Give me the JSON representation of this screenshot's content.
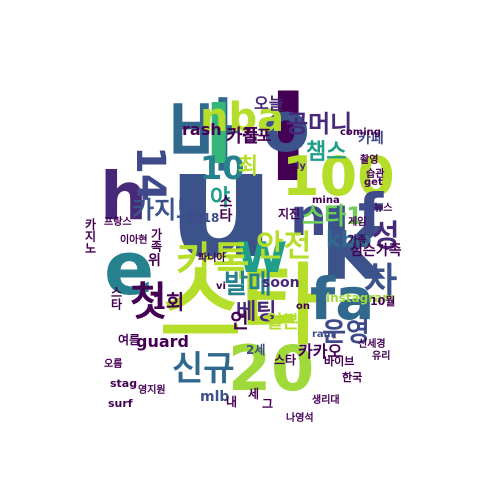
{
  "word_cloud": {
    "words": [
      {
        "text": "u",
        "color": "#3b528b"
      },
      {
        "text": "스타",
        "color": "#b5de2b"
      },
      {
        "text": "바",
        "color": "#31688e"
      },
      {
        "text": "l",
        "color": "#440154"
      },
      {
        "text": "l",
        "color": "#35b779"
      },
      {
        "text": "o",
        "color": "#3b528b"
      },
      {
        "text": "e",
        "color": "#26828e"
      },
      {
        "text": "k",
        "color": "#3b528b"
      },
      {
        "text": "h",
        "color": "#482878"
      },
      {
        "text": "w",
        "color": "#1f9e89"
      },
      {
        "text": "n",
        "color": "#3e4a89"
      },
      {
        "text": "100",
        "color": "#b5de2b"
      },
      {
        "text": "20",
        "color": "#9fda3a"
      },
      {
        "text": "fa",
        "color": "#31688e"
      },
      {
        "text": "f",
        "color": "#3e4a89"
      },
      {
        "text": "카톡",
        "color": "#b5de2b"
      },
      {
        "text": "nba",
        "color": "#b5de2b"
      },
      {
        "text": "첫",
        "color": "#440154"
      },
      {
        "text": "차",
        "color": "#3b528b"
      },
      {
        "text": "성",
        "color": "#482878"
      },
      {
        "text": "신규",
        "color": "#31688e"
      },
      {
        "text": "안전",
        "color": "#b5de2b"
      },
      {
        "text": "발매",
        "color": "#26828e"
      },
      {
        "text": "운영",
        "color": "#3e4a89"
      },
      {
        "text": "10",
        "color": "#26828e"
      },
      {
        "text": "14",
        "color": "#3e4a89"
      },
      {
        "text": "카지노",
        "color": "#3b528b"
      },
      {
        "text": "스타1",
        "color": "#6ece58"
      },
      {
        "text": "공머니",
        "color": "#482878"
      },
      {
        "text": "챔스",
        "color": "#1f9e89"
      },
      {
        "text": "kbo",
        "color": "#31688e"
      },
      {
        "text": "베팅",
        "color": "#482878"
      },
      {
        "text": "1회",
        "color": "#440154"
      },
      {
        "text": "언",
        "color": "#440154"
      },
      {
        "text": "카카오",
        "color": "#440154"
      },
      {
        "text": "카풀",
        "color": "#440154"
      },
      {
        "text": "김포",
        "color": "#440154"
      },
      {
        "text": "카페",
        "color": "#3e4a89"
      },
      {
        "text": "심슨가족",
        "color": "#440154"
      },
      {
        "text": "일본",
        "color": "#b5de2b"
      },
      {
        "text": "guard",
        "color": "#440154"
      },
      {
        "text": "soon",
        "color": "#482878"
      },
      {
        "text": "오늘",
        "color": "#482878"
      },
      {
        "text": "rash",
        "color": "#440154"
      },
      {
        "text": "mlb",
        "color": "#3b528b"
      },
      {
        "text": "stag",
        "color": "#440154"
      },
      {
        "text": "surf",
        "color": "#440154"
      },
      {
        "text": "2018",
        "color": "#3e4a89"
      },
      {
        "text": "instagram",
        "color": "#9fda3a"
      },
      {
        "text": "10월",
        "color": "#440154"
      },
      {
        "text": "get",
        "color": "#440154"
      },
      {
        "text": "ly",
        "color": "#482878"
      },
      {
        "text": "vi",
        "color": "#440154"
      },
      {
        "text": "ram",
        "color": "#3e4a89"
      },
      {
        "text": "한국",
        "color": "#440154"
      },
      {
        "text": "여름",
        "color": "#440154"
      },
      {
        "text": "오름",
        "color": "#440154"
      },
      {
        "text": "바이브",
        "color": "#440154"
      },
      {
        "text": "나영석",
        "color": "#440154"
      },
      {
        "text": "프랑스",
        "color": "#440154"
      },
      {
        "text": "영지원",
        "color": "#440154"
      },
      {
        "text": "유리",
        "color": "#440154"
      },
      {
        "text": "지진",
        "color": "#440154"
      },
      {
        "text": "신세경",
        "color": "#440154"
      },
      {
        "text": "생리대",
        "color": "#440154"
      },
      {
        "text": "가족",
        "color": "#440154"
      },
      {
        "text": "습관",
        "color": "#440154"
      },
      {
        "text": "뉴스",
        "color": "#440154"
      },
      {
        "text": "촬영",
        "color": "#440154"
      },
      {
        "text": "이아현",
        "color": "#440154"
      },
      {
        "text": "파니아",
        "color": "#440154"
      },
      {
        "text": "2세",
        "color": "#3e4a89"
      },
      {
        "text": "mina",
        "color": "#440154"
      },
      {
        "text": "coming",
        "color": "#440154"
      },
      {
        "text": "on",
        "color": "#440154"
      },
      {
        "text": "카지노",
        "color": "#440154"
      },
      {
        "text": "스타",
        "color": "#440154"
      },
      {
        "text": "가족",
        "color": "#440154"
      },
      {
        "text": "스타",
        "color": "#440154"
      },
      {
        "text": "게임",
        "color": "#440154"
      },
      {
        "text": "야",
        "color": "#1f9e89"
      },
      {
        "text": "최",
        "color": "#b5de2b"
      },
      {
        "text": "스타",
        "color": "#440154"
      },
      {
        "text": "위",
        "color": "#440154"
      },
      {
        "text": "내",
        "color": "#440154"
      },
      {
        "text": "세",
        "color": "#440154"
      },
      {
        "text": "그",
        "color": "#440154"
      }
    ]
  }
}
